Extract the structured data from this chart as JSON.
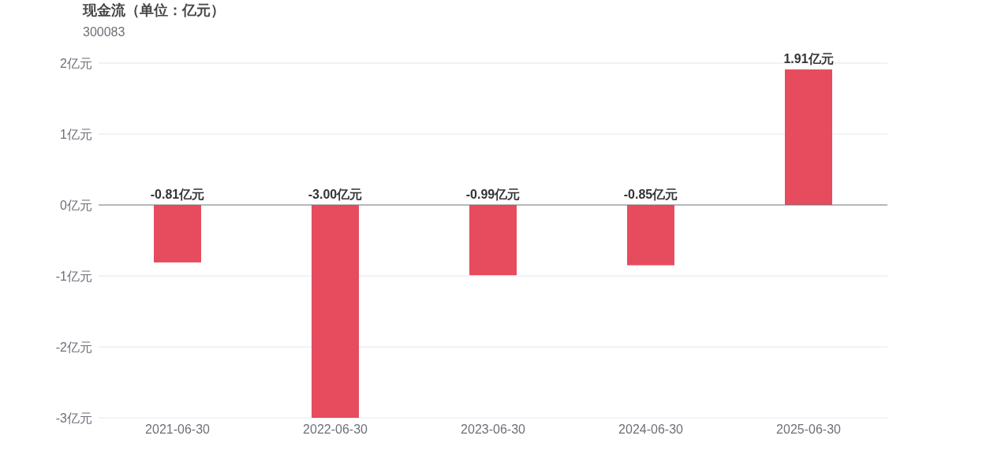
{
  "chart_data": {
    "type": "bar",
    "title": "现金流（单位：亿元）",
    "subtitle": "300083",
    "categories": [
      "2021-06-30",
      "2022-06-30",
      "2023-06-30",
      "2024-06-30",
      "2025-06-30"
    ],
    "values": [
      -0.81,
      -3.0,
      -0.99,
      -0.85,
      1.91
    ],
    "color": "#e64c5e",
    "value_labels": [
      "-0.81亿元",
      "-3.00亿元",
      "-0.99亿元",
      "-0.85亿元",
      "1.91亿元"
    ],
    "ylim": [
      -3,
      2
    ],
    "yticks": [
      {
        "value": -3,
        "label": "-3亿元"
      },
      {
        "value": -2,
        "label": "-2亿元"
      },
      {
        "value": -1,
        "label": "-1亿元"
      },
      {
        "value": 0,
        "label": "0亿元"
      },
      {
        "value": 1,
        "label": "1亿元"
      },
      {
        "value": 2,
        "label": "2亿元"
      }
    ],
    "grid": "y"
  }
}
